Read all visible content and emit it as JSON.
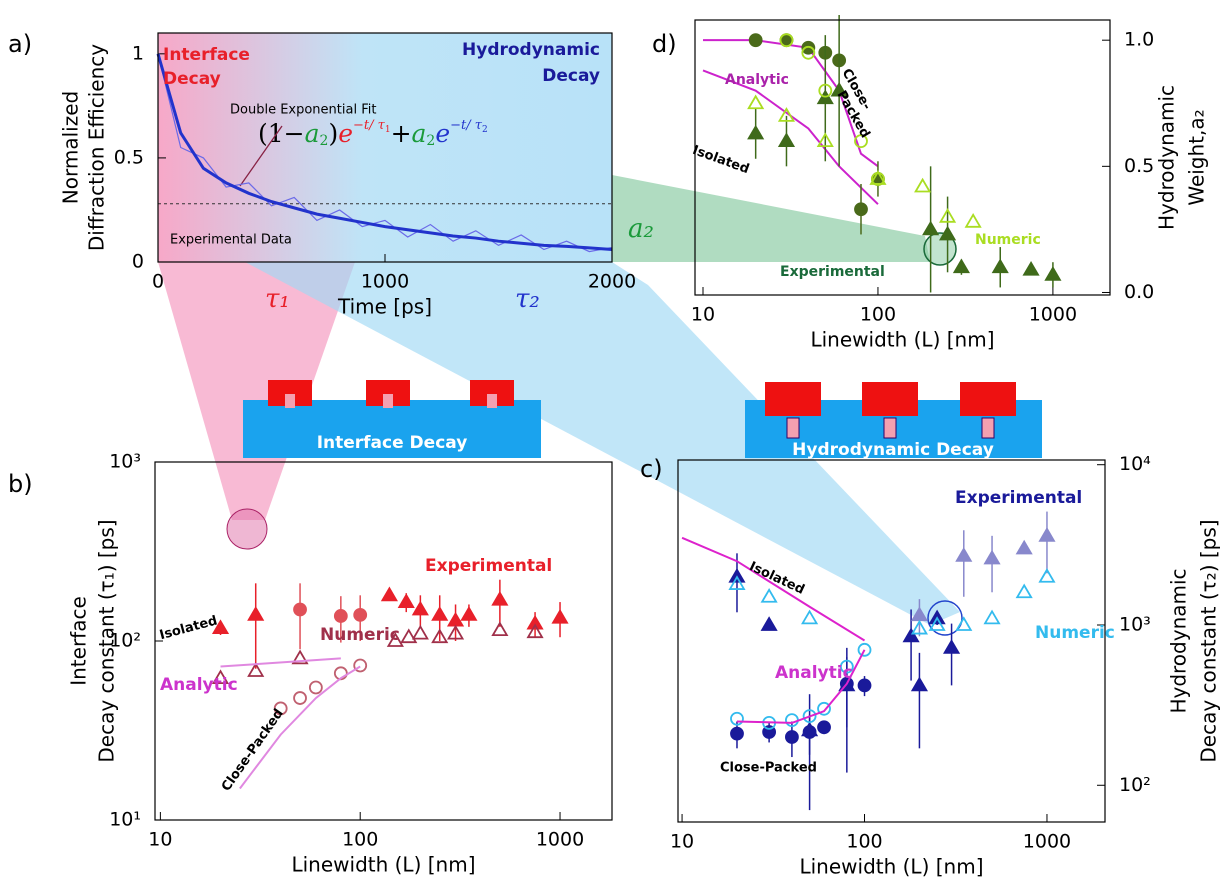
{
  "chart_data": [
    {
      "type": "line",
      "panel": "a)",
      "ylabel": [
        "Normalized",
        "Diffraction Efficiency"
      ],
      "xlabel": "Time [ps]",
      "xlim": [
        0,
        2000
      ],
      "xticks": [
        0,
        1000,
        2000
      ],
      "ylim": [
        0,
        1.1
      ],
      "yticks": [
        0,
        0.5,
        1
      ],
      "yaxis_side": "left",
      "hline": 0.28,
      "annotations": [
        "Interface",
        "Decay",
        "Hydrodynamic",
        "Decay",
        "Double Exponential Fit",
        "Experimental Data"
      ],
      "formula": [
        "(1−",
        "a",
        "2",
        ")",
        "e",
        "−t/ τ",
        "1",
        "+",
        "a",
        "2",
        "e",
        "−t/ τ",
        "2"
      ],
      "tau_labels": [
        "τ₁",
        "τ₂"
      ],
      "series": [
        {
          "marker": "none",
          "color": "#6a6ae8",
          "width": 1.2,
          "x": [
            0,
            100,
            200,
            300,
            400,
            500,
            600,
            700,
            800,
            900,
            1000,
            1100,
            1200,
            1300,
            1400,
            1500,
            1600,
            1700,
            1800,
            1900,
            2000
          ],
          "values": [
            1.0,
            0.55,
            0.5,
            0.36,
            0.38,
            0.27,
            0.31,
            0.2,
            0.25,
            0.17,
            0.2,
            0.12,
            0.18,
            0.1,
            0.15,
            0.08,
            0.13,
            0.06,
            0.1,
            0.05,
            0.07
          ]
        },
        {
          "marker": "none",
          "color": "#2233cc",
          "width": 3,
          "x": [
            0,
            100,
            200,
            300,
            400,
            500,
            600,
            700,
            800,
            900,
            1000,
            1100,
            1200,
            1300,
            1400,
            1500,
            1600,
            1700,
            1800,
            1900,
            2000
          ],
          "values": [
            1.0,
            0.62,
            0.45,
            0.38,
            0.33,
            0.29,
            0.26,
            0.23,
            0.21,
            0.19,
            0.17,
            0.155,
            0.14,
            0.125,
            0.115,
            0.1,
            0.09,
            0.08,
            0.075,
            0.068,
            0.06
          ]
        }
      ]
    },
    {
      "type": "scatter",
      "panel": "b)",
      "ylabel": [
        "Interface",
        "Decay constant (τ₁) [ps]"
      ],
      "xlabel": "Linewidth (L) [nm]",
      "xscale": "log",
      "yscale": "log",
      "xlim": [
        9.4,
        1820
      ],
      "xticks": [
        10,
        100,
        1000
      ],
      "ylim": [
        10,
        1000
      ],
      "yticks": [
        {
          "value": 10,
          "label": "10¹"
        },
        {
          "value": 100,
          "label": "10²"
        },
        {
          "value": 1000,
          "label": "10³"
        }
      ],
      "yaxis_side": "left",
      "annotations": [
        "Experimental",
        "Numeric",
        "Analytic",
        "Isolated",
        "Close-Packed"
      ],
      "series": [
        {
          "marker": "triangle",
          "filled": true,
          "color": "#e8202a",
          "x": [
            20,
            30,
            140,
            170,
            200,
            250,
            300,
            350,
            500,
            750,
            1000
          ],
          "values": [
            118,
            140,
            180,
            165,
            150,
            140,
            130,
            140,
            170,
            125,
            135
          ],
          "errors": [
            10,
            70,
            10,
            20,
            30,
            40,
            30,
            20,
            50,
            20,
            30
          ]
        },
        {
          "marker": "circle",
          "filled": true,
          "color": "#e05058",
          "x": [
            50,
            80,
            100
          ],
          "values": [
            150,
            138,
            140
          ],
          "errors": [
            60,
            40,
            40
          ]
        },
        {
          "marker": "triangle",
          "filled": false,
          "color": "#a0304a",
          "x": [
            20,
            30,
            50,
            150,
            175,
            200,
            250,
            300,
            500,
            750
          ],
          "values": [
            62,
            68,
            80,
            100,
            105,
            110,
            105,
            110,
            115,
            112
          ]
        },
        {
          "marker": "circle",
          "filled": false,
          "color": "#c06070",
          "x": [
            40,
            50,
            60,
            80,
            100
          ],
          "values": [
            42,
            48,
            55,
            66,
            73
          ]
        },
        {
          "marker": "none",
          "color": "#e088e0",
          "width": 2,
          "x": [
            20,
            80
          ],
          "values": [
            72,
            80
          ]
        },
        {
          "marker": "none",
          "color": "#e088e0",
          "width": 2,
          "x": [
            25,
            40,
            60,
            80,
            100
          ],
          "values": [
            15,
            30,
            48,
            62,
            72
          ]
        }
      ]
    },
    {
      "type": "scatter",
      "panel": "c)",
      "ylabel": [
        "Hydrodynamic",
        "Decay constant (τ₂) [ps]"
      ],
      "xlabel": "Linewidth (L) [nm]",
      "xscale": "log",
      "yscale": "log",
      "xlim": [
        9.5,
        2080
      ],
      "xticks": [
        10,
        100,
        1000
      ],
      "ylim": [
        59,
        10700
      ],
      "yticks": [
        {
          "value": 100,
          "label": "10²"
        },
        {
          "value": 1000,
          "label": "10³"
        },
        {
          "value": 10000,
          "label": "10⁴"
        }
      ],
      "yaxis_side": "right",
      "annotations": [
        "Experimental",
        "Numeric",
        "Analytic",
        "Isolated",
        "Close-Packed"
      ],
      "series": [
        {
          "marker": "triangle",
          "filled": true,
          "color": "#1a1a9a",
          "x": [
            20,
            30,
            50,
            80,
            180,
            200,
            250,
            300
          ],
          "values": [
            2000,
            1000,
            220,
            420,
            850,
            420,
            1100,
            720
          ],
          "errors": [
            800,
            50,
            150,
            300,
            400,
            250,
            100,
            300
          ]
        },
        {
          "marker": "triangle",
          "filled": true,
          "color": "#8888cc",
          "x": [
            200,
            350,
            500,
            750,
            1000
          ],
          "values": [
            1150,
            2700,
            2600,
            3000,
            3600
          ],
          "errors": [
            300,
            1200,
            1000,
            100,
            1500
          ]
        },
        {
          "marker": "circle",
          "filled": true,
          "color": "#1a1a9a",
          "x": [
            20,
            30,
            40,
            50,
            60,
            80,
            100
          ],
          "values": [
            210,
            215,
            200,
            215,
            230,
            430,
            420
          ],
          "errors": [
            40,
            30,
            50,
            60,
            20,
            200,
            60
          ]
        },
        {
          "marker": "triangle",
          "filled": false,
          "color": "#33bbee",
          "x": [
            20,
            30,
            50,
            200,
            250,
            350,
            500,
            750,
            1000
          ],
          "values": [
            1800,
            1500,
            1100,
            950,
            1000,
            1000,
            1100,
            1600,
            2000
          ]
        },
        {
          "marker": "circle",
          "filled": false,
          "color": "#33bbee",
          "x": [
            20,
            30,
            40,
            50,
            60,
            80,
            100
          ],
          "values": [
            260,
            245,
            255,
            270,
            300,
            550,
            700
          ]
        },
        {
          "marker": "none",
          "color": "#dd22cc",
          "width": 2,
          "x": [
            10,
            20,
            50,
            100
          ],
          "values": [
            3500,
            2500,
            1300,
            800
          ]
        },
        {
          "marker": "none",
          "color": "#dd22cc",
          "width": 2,
          "x": [
            20,
            40,
            60,
            80,
            100
          ],
          "values": [
            250,
            245,
            290,
            430,
            700
          ]
        }
      ]
    },
    {
      "type": "scatter",
      "panel": "d)",
      "ylabel": [
        "Hydrodynamic",
        "Weight,a₂"
      ],
      "xlabel": "Linewidth (L) [nm]",
      "xscale": "log",
      "xlim": [
        9.0,
        2120
      ],
      "xticks": [
        10,
        100,
        1000
      ],
      "ylim": [
        -0.01,
        1.08
      ],
      "yticks": [
        {
          "value": 0,
          "label": "0.0"
        },
        {
          "value": 0.5,
          "label": "0.5"
        },
        {
          "value": 1,
          "label": "1.0"
        }
      ],
      "yaxis_side": "right",
      "annotations": [
        "Analytic",
        "Close-",
        "Packed",
        "Isolated",
        "Numeric",
        "Experimental"
      ],
      "series": [
        {
          "marker": "none",
          "color": "#cc22cc",
          "width": 2,
          "x": [
            10,
            20,
            40,
            60,
            80,
            100
          ],
          "values": [
            1.0,
            1.0,
            0.97,
            0.8,
            0.55,
            0.5
          ]
        },
        {
          "marker": "none",
          "color": "#cc22cc",
          "width": 2,
          "x": [
            10,
            20,
            40,
            60,
            100
          ],
          "values": [
            0.88,
            0.8,
            0.65,
            0.5,
            0.35
          ]
        },
        {
          "marker": "circle",
          "filled": true,
          "color": "#4a6a1a",
          "x": [
            20,
            30,
            40,
            50,
            60,
            80,
            100
          ],
          "values": [
            1.0,
            1.0,
            0.97,
            0.95,
            0.92,
            0.33,
            0.45
          ],
          "errors": [
            0,
            0,
            0,
            0,
            0,
            0.1,
            0.07
          ]
        },
        {
          "marker": "triangle",
          "filled": true,
          "color": "#3f6a1a",
          "x": [
            20,
            30,
            50,
            60,
            200,
            250,
            300,
            500,
            750,
            1000
          ],
          "values": [
            0.63,
            0.6,
            0.77,
            0.8,
            0.25,
            0.23,
            0.1,
            0.1,
            0.09,
            0.07
          ],
          "errors": [
            0.1,
            0.1,
            0.25,
            0.3,
            0.25,
            0.15,
            0.03,
            0.08,
            0.02,
            0.05
          ]
        },
        {
          "marker": "circle",
          "filled": false,
          "color": "#aadd22",
          "x": [
            30,
            40,
            50,
            80,
            100
          ],
          "values": [
            1.0,
            0.95,
            0.8,
            0.6,
            0.45
          ]
        },
        {
          "marker": "triangle",
          "filled": false,
          "color": "#aadd22",
          "x": [
            20,
            30,
            50,
            100,
            180,
            250,
            350
          ],
          "values": [
            0.75,
            0.7,
            0.6,
            0.45,
            0.42,
            0.3,
            0.28
          ]
        }
      ]
    }
  ],
  "banners": [
    "Interface Decay",
    "Hydrodynamic Decay"
  ],
  "callout": "a₂"
}
